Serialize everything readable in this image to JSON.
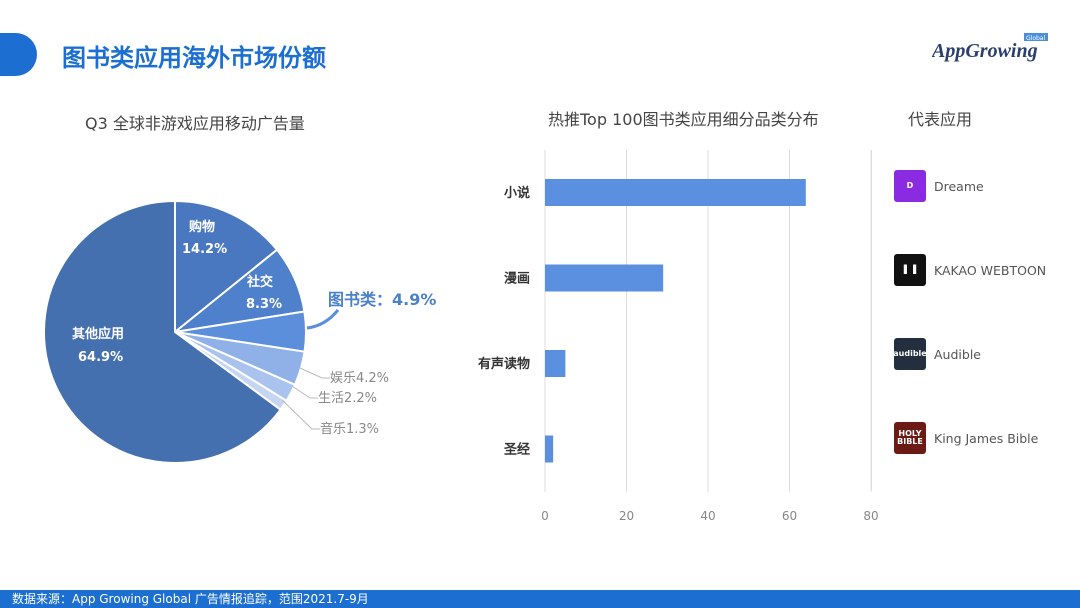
{
  "header": {
    "title": "图书类应用海外市场份额",
    "logo_text": "AppGrowing",
    "logo_badge": "Global"
  },
  "footer": {
    "source": "数据来源：App Growing Global 广告情报追踪，范围2021.7-9月"
  },
  "reps": {
    "title": "代表应用",
    "apps": [
      {
        "name": "Dreame",
        "icon": "dreame-logo-icon",
        "color": "#8a2be2"
      },
      {
        "name": "KAKAO WEBTOON",
        "icon": "kakao-webtoon-logo-icon",
        "color": "#111111"
      },
      {
        "name": "Audible",
        "icon": "audible-logo-icon",
        "color": "#232f3e",
        "icon_text": "audible"
      },
      {
        "name": "King James Bible",
        "icon": "holy-bible-icon",
        "color": "#6b1a14",
        "icon_text": "HOLY BIBLE"
      }
    ]
  },
  "chart_data": [
    {
      "type": "pie",
      "title": "Q3 全球非游戏应用移动广告量",
      "slices": [
        {
          "label": "购物",
          "value": 14.2,
          "display": "14.2%",
          "color": "#4a78c0"
        },
        {
          "label": "社交",
          "value": 8.3,
          "display": "8.3%",
          "color": "#4f80cc"
        },
        {
          "label": "图书类",
          "value": 4.9,
          "display": "图书类：4.9%",
          "color": "#5b8fdb"
        },
        {
          "label": "娱乐",
          "value": 4.2,
          "display": "娱乐4.2%",
          "color": "#8fb1e8"
        },
        {
          "label": "生活",
          "value": 2.2,
          "display": "生活2.2%",
          "color": "#aac3ee"
        },
        {
          "label": "音乐",
          "value": 1.3,
          "display": "音乐1.3%",
          "color": "#c6d6f2"
        },
        {
          "label": "其他应用",
          "value": 64.9,
          "display": "64.9%",
          "color": "#4570b0"
        }
      ]
    },
    {
      "type": "bar",
      "orientation": "horizontal",
      "title": "热推Top 100图书类应用细分品类分布",
      "categories": [
        "小说",
        "漫画",
        "有声读物",
        "圣经"
      ],
      "values": [
        64,
        29,
        5,
        2
      ],
      "xlim": [
        0,
        80
      ],
      "xticks": [
        "0",
        "20",
        "40",
        "60",
        "80"
      ],
      "grid": true,
      "color": "#5b8fe0"
    }
  ]
}
